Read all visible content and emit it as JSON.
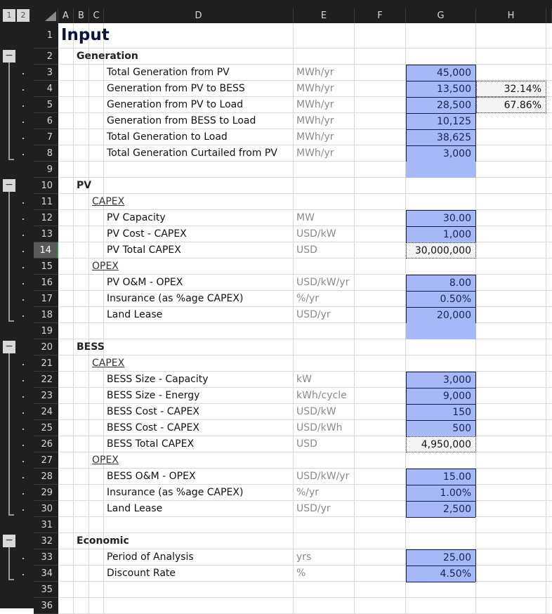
{
  "outline_levels": [
    "1",
    "2"
  ],
  "columns": [
    "A",
    "B",
    "C",
    "D",
    "E",
    "F",
    "G",
    "H"
  ],
  "selected_row": "14",
  "colors": {
    "input_fill": "#a6b8f7",
    "calc_fill": "#f4f4f4",
    "header_bg": "#1f1f1f",
    "title": "#0b1340"
  },
  "rows": [
    {
      "n": "1",
      "title": "Input"
    },
    {
      "n": "2",
      "sec": "Generation",
      "ol": "minus"
    },
    {
      "n": "3",
      "d": "Total Generation from PV",
      "e": "MWh/yr",
      "g": "45,000",
      "gs": "input",
      "ol": "dot"
    },
    {
      "n": "4",
      "d": "Generation from PV to BESS",
      "e": "MWh/yr",
      "g": "13,500",
      "gs": "input",
      "h": "32.14%",
      "ol": "dot"
    },
    {
      "n": "5",
      "d": "Generation from PV to Load",
      "e": "MWh/yr",
      "g": "28,500",
      "gs": "input",
      "h": "67.86%",
      "ol": "dot"
    },
    {
      "n": "6",
      "d": "Generation from BESS to Load",
      "e": "MWh/yr",
      "g": "10,125",
      "gs": "input",
      "ol": "dot"
    },
    {
      "n": "7",
      "d": "Total Generation to Load",
      "e": "MWh/yr",
      "g": "38,625",
      "gs": "input",
      "ol": "dot"
    },
    {
      "n": "8",
      "d": "Total Generation Curtailed from PV",
      "e": "MWh/yr",
      "g": "3,000",
      "gs": "input",
      "ol": "dot"
    },
    {
      "n": "9",
      "gs": "blank"
    },
    {
      "n": "10",
      "sec": "PV",
      "ol": "minus"
    },
    {
      "n": "11",
      "sub": "CAPEX",
      "ol": "dot"
    },
    {
      "n": "12",
      "d": "PV Capacity",
      "e": "MW",
      "g": "30.00",
      "gs": "input",
      "ol": "dot"
    },
    {
      "n": "13",
      "d": "PV Cost - CAPEX",
      "e": "USD/kW",
      "g": "1,000",
      "gs": "input",
      "ol": "dot"
    },
    {
      "n": "14",
      "d": "PV Total CAPEX",
      "e": "USD",
      "g": "30,000,000",
      "gs": "calc",
      "ol": "dot"
    },
    {
      "n": "15",
      "sub": "OPEX",
      "ol": "dot"
    },
    {
      "n": "16",
      "d": "PV O&M - OPEX",
      "e": "USD/kW/yr",
      "g": "8.00",
      "gs": "input",
      "ol": "dot"
    },
    {
      "n": "17",
      "d": "Insurance (as %age CAPEX)",
      "e": "%/yr",
      "g": "0.50%",
      "gs": "input",
      "ol": "dot"
    },
    {
      "n": "18",
      "d": "Land Lease",
      "e": "USD/yr",
      "g": "20,000",
      "gs": "input",
      "ol": "dot"
    },
    {
      "n": "19",
      "gs": "blank"
    },
    {
      "n": "20",
      "sec": "BESS",
      "ol": "minus"
    },
    {
      "n": "21",
      "sub": "CAPEX",
      "ol": "dot"
    },
    {
      "n": "22",
      "d": "BESS Size - Capacity",
      "e": "kW",
      "g": "3,000",
      "gs": "input",
      "ol": "dot"
    },
    {
      "n": "23",
      "d": "BESS Size - Energy",
      "e": "kWh/cycle",
      "g": "9,000",
      "gs": "input",
      "ol": "dot"
    },
    {
      "n": "24",
      "d": "BESS Cost - CAPEX",
      "e": "USD/kW",
      "g": "150",
      "gs": "input",
      "ol": "dot"
    },
    {
      "n": "25",
      "d": "BESS Cost - CAPEX",
      "e": "USD/kWh",
      "g": "500",
      "gs": "input",
      "ol": "dot"
    },
    {
      "n": "26",
      "d": "BESS Total CAPEX",
      "e": "USD",
      "g": "4,950,000",
      "gs": "calc",
      "ol": "dot"
    },
    {
      "n": "27",
      "sub": "OPEX",
      "ol": "dot"
    },
    {
      "n": "28",
      "d": "BESS O&M - OPEX",
      "e": "USD/kW/yr",
      "g": "15.00",
      "gs": "input",
      "ol": "dot"
    },
    {
      "n": "29",
      "d": "Insurance (as %age CAPEX)",
      "e": "%/yr",
      "g": "1.00%",
      "gs": "input",
      "ol": "dot"
    },
    {
      "n": "30",
      "d": "Land Lease",
      "e": "USD/yr",
      "g": "2,500",
      "gs": "input",
      "ol": "dot"
    },
    {
      "n": "31"
    },
    {
      "n": "32",
      "sec": "Economic",
      "ol": "minus"
    },
    {
      "n": "33",
      "d": "Period of Analysis",
      "e": "yrs",
      "g": "25.00",
      "gs": "input",
      "ol": "dot"
    },
    {
      "n": "34",
      "d": "Discount Rate",
      "e": "%",
      "g": "4.50%",
      "gs": "input",
      "ol": "dot"
    },
    {
      "n": "35"
    },
    {
      "n": "36"
    }
  ]
}
